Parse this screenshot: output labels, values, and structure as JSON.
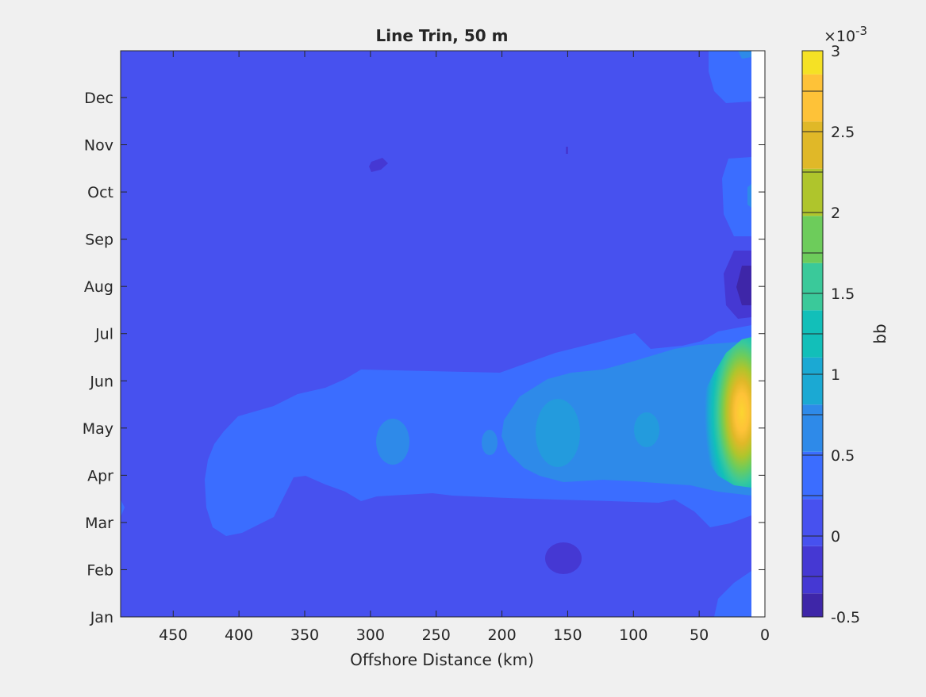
{
  "chart_data": {
    "type": "contour",
    "title": "Line Trin, 50 m",
    "xlabel": "Offshore Distance (km)",
    "ylabel": "",
    "x_axis_reversed": true,
    "xlim": [
      0,
      490
    ],
    "x_ticks": [
      450,
      400,
      350,
      300,
      250,
      200,
      150,
      100,
      50,
      0
    ],
    "y_ticks": [
      "Jan",
      "Feb",
      "Mar",
      "Apr",
      "May",
      "Jun",
      "Jul",
      "Aug",
      "Sep",
      "Oct",
      "Nov",
      "Dec"
    ],
    "colorbar": {
      "label": "bb",
      "exponent_label": "×10",
      "exponent_power": "-3",
      "range": [
        -0.5,
        3
      ],
      "tick_values": [
        3,
        2.5,
        2,
        1.5,
        1,
        0.5,
        0,
        -0.5
      ],
      "tick_labels": [
        "3",
        "2.5",
        "2",
        "1.5",
        "1",
        "0.5",
        "0",
        "-0.5"
      ],
      "level_colors": [
        "#3e26a8",
        "#4538d3",
        "#4751ef",
        "#3b6dff",
        "#2e8ae9",
        "#1ba9d3",
        "#12bfb9",
        "#3ac99a",
        "#6dcc5b",
        "#afc52c",
        "#e0b828",
        "#fec238",
        "#f5e125"
      ]
    },
    "regions": [
      {
        "name": "coastal-high-peak",
        "x_range_km": [
          8,
          35
        ],
        "month_range": [
          "Apr",
          "Jun"
        ],
        "value_max": 3.0
      },
      {
        "name": "spring-band",
        "x_range_km": [
          8,
          430
        ],
        "month_range": [
          "Mar",
          "Jul"
        ],
        "value_range": [
          0.25,
          0.75
        ]
      },
      {
        "name": "summer-low-coastal",
        "x_range_km": [
          8,
          30
        ],
        "month_range": [
          "Jul",
          "Aug"
        ],
        "value_min": -0.25
      },
      {
        "name": "winter-low-150km",
        "x_range_km": [
          140,
          165
        ],
        "month_range": [
          "Jan",
          "Feb"
        ],
        "value_min": -0.25
      },
      {
        "name": "background",
        "value_range": [
          0,
          0.25
        ]
      }
    ],
    "grid": false,
    "legend": "none"
  }
}
